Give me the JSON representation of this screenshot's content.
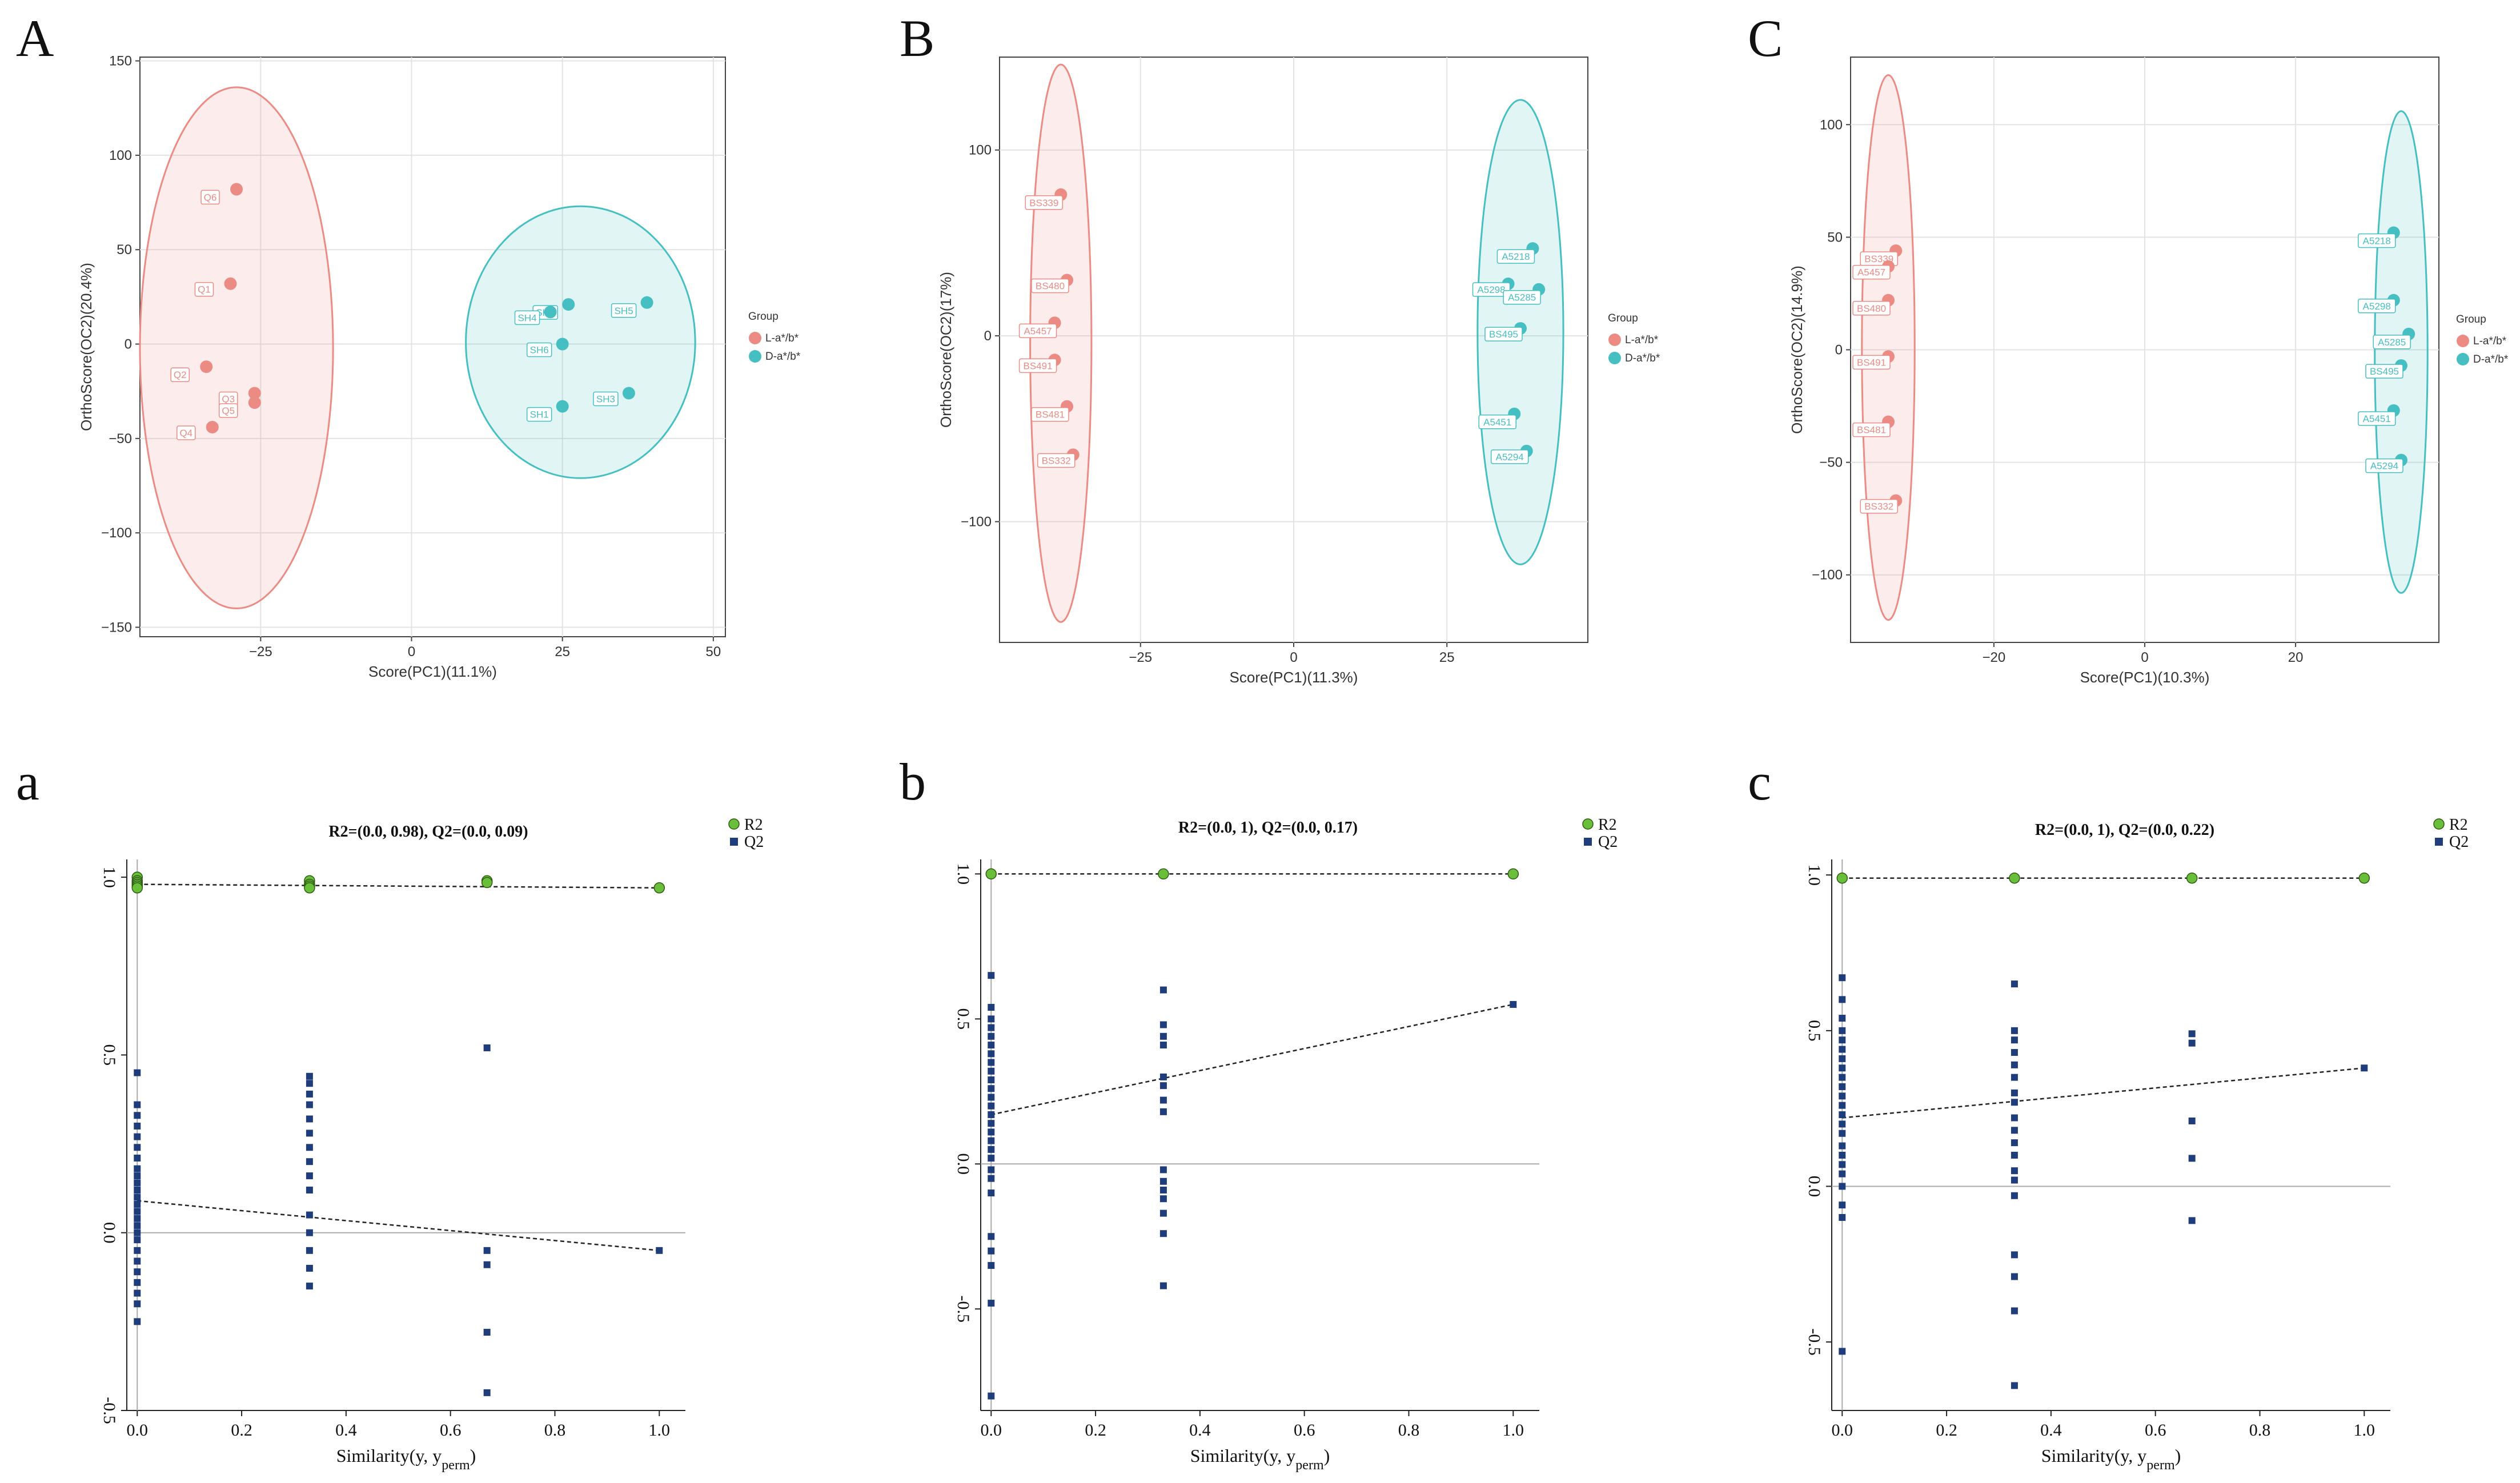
{
  "chart_data": [
    {
      "panel": "A",
      "type": "scatter",
      "xlabel": "Score(PC1)(11.1%)",
      "ylabel": "OrthoScore(OC2)(20.4%)",
      "xlim": [
        -45,
        52
      ],
      "ylim": [
        -155,
        152
      ],
      "xticks": [
        -25,
        0,
        25,
        50
      ],
      "yticks": [
        -150,
        -100,
        -50,
        0,
        50,
        100,
        150
      ],
      "legend_title": "Group",
      "series": [
        {
          "name": "L-a*/b*",
          "color": "#ec8b84",
          "ellipse": {
            "cx": -29,
            "cy": -2,
            "rx": 16,
            "ry": 138
          },
          "points": [
            {
              "label": "Q6",
              "x": -29,
              "y": 82
            },
            {
              "label": "Q1",
              "x": -30,
              "y": 32
            },
            {
              "label": "Q2",
              "x": -34,
              "y": -12
            },
            {
              "label": "Q3",
              "x": -26,
              "y": -26
            },
            {
              "label": "Q5",
              "x": -26,
              "y": -31
            },
            {
              "label": "Q4",
              "x": -33,
              "y": -44
            }
          ]
        },
        {
          "name": "D-a*/b*",
          "color": "#46bfc3",
          "ellipse": {
            "cx": 28,
            "cy": 1,
            "rx": 19,
            "ry": 72
          },
          "points": [
            {
              "label": "SH2",
              "x": 26,
              "y": 21
            },
            {
              "label": "SH4",
              "x": 23,
              "y": 17
            },
            {
              "label": "SH5",
              "x": 39,
              "y": 22
            },
            {
              "label": "SH6",
              "x": 25,
              "y": 0
            },
            {
              "label": "SH1",
              "x": 25,
              "y": -33
            },
            {
              "label": "SH3",
              "x": 36,
              "y": -26
            }
          ]
        }
      ]
    },
    {
      "panel": "B",
      "type": "scatter",
      "xlabel": "Score(PC1)(11.3%)",
      "ylabel": "OrthoScore(OC2)(17%)",
      "xlim": [
        -48,
        48
      ],
      "ylim": [
        -165,
        150
      ],
      "xticks": [
        -25,
        0,
        25
      ],
      "yticks": [
        -100,
        0,
        100
      ],
      "legend_title": "Group",
      "series": [
        {
          "name": "L-a*/b*",
          "color": "#ec8b84",
          "ellipse": {
            "cx": -38,
            "cy": -4,
            "rx": 5,
            "ry": 150
          },
          "points": [
            {
              "label": "BS339",
              "x": -38,
              "y": 76
            },
            {
              "label": "BS480",
              "x": -37,
              "y": 30
            },
            {
              "label": "A5457",
              "x": -39,
              "y": 7
            },
            {
              "label": "BS491",
              "x": -39,
              "y": -13
            },
            {
              "label": "BS481",
              "x": -37,
              "y": -38
            },
            {
              "label": "BS332",
              "x": -36,
              "y": -64
            }
          ]
        },
        {
          "name": "D-a*/b*",
          "color": "#46bfc3",
          "ellipse": {
            "cx": 37,
            "cy": 2,
            "rx": 7,
            "ry": 125
          },
          "points": [
            {
              "label": "A5218",
              "x": 39,
              "y": 47
            },
            {
              "label": "A5298",
              "x": 35,
              "y": 28
            },
            {
              "label": "A5285",
              "x": 40,
              "y": 25
            },
            {
              "label": "BS495",
              "x": 37,
              "y": 4
            },
            {
              "label": "A5451",
              "x": 36,
              "y": -42
            },
            {
              "label": "A5294",
              "x": 38,
              "y": -62
            }
          ]
        }
      ]
    },
    {
      "panel": "C",
      "type": "scatter",
      "xlabel": "Score(PC1)(10.3%)",
      "ylabel": "OrthoScore(OC2)(14.9%)",
      "xlim": [
        -39,
        39
      ],
      "ylim": [
        -130,
        130
      ],
      "xticks": [
        -20,
        0,
        20
      ],
      "yticks": [
        -100,
        -50,
        0,
        50,
        100
      ],
      "legend_title": "Group",
      "series": [
        {
          "name": "L-a*/b*",
          "color": "#ec8b84",
          "ellipse": {
            "cx": -34,
            "cy": 1,
            "rx": 3.5,
            "ry": 121
          },
          "points": [
            {
              "label": "BS339",
              "x": -33,
              "y": 44
            },
            {
              "label": "A5457",
              "x": -34,
              "y": 37
            },
            {
              "label": "BS480",
              "x": -34,
              "y": 22
            },
            {
              "label": "BS491",
              "x": -34,
              "y": -3
            },
            {
              "label": "BS481",
              "x": -34,
              "y": -32
            },
            {
              "label": "BS332",
              "x": -33,
              "y": -67
            }
          ]
        },
        {
          "name": "D-a*/b*",
          "color": "#46bfc3",
          "ellipse": {
            "cx": 34,
            "cy": -1,
            "rx": 3.5,
            "ry": 107
          },
          "points": [
            {
              "label": "A5218",
              "x": 33,
              "y": 52
            },
            {
              "label": "A5298",
              "x": 33,
              "y": 22
            },
            {
              "label": "A5285",
              "x": 35,
              "y": 7
            },
            {
              "label": "BS495",
              "x": 34,
              "y": -7
            },
            {
              "label": "A5451",
              "x": 33,
              "y": -27
            },
            {
              "label": "A5294",
              "x": 34,
              "y": -49
            }
          ]
        }
      ]
    },
    {
      "panel": "a",
      "type": "scatter",
      "title": "R2=(0.0, 0.98), Q2=(0.0, 0.09)",
      "xlabel": "Similarity(y, y",
      "xlabel_sub": "perm",
      "xlabel_end": ")",
      "xlim": [
        -0.02,
        1.05
      ],
      "ylim": [
        -0.5,
        1.05
      ],
      "xticks": [
        "0.0",
        "0.2",
        "0.4",
        "0.6",
        "0.8",
        "1.0"
      ],
      "yticks": [
        "-0.5",
        "0.0",
        "0.5",
        "1.0"
      ],
      "legend": [
        {
          "name": "R2",
          "color": "#6abf3a"
        },
        {
          "name": "Q2",
          "color": "#1f3d7a"
        }
      ],
      "r2_line": [
        0.98,
        0.97
      ],
      "q2_line": [
        0.09,
        -0.05
      ],
      "r2_points": [
        [
          0,
          1.0
        ],
        [
          0,
          0.99
        ],
        [
          0,
          0.985
        ],
        [
          0,
          0.98
        ],
        [
          0,
          0.975
        ],
        [
          0,
          0.97
        ],
        [
          0.33,
          0.99
        ],
        [
          0.33,
          0.98
        ],
        [
          0.33,
          0.975
        ],
        [
          0.33,
          0.97
        ],
        [
          0.67,
          0.99
        ],
        [
          0.67,
          0.985
        ],
        [
          1.0,
          0.97
        ]
      ],
      "q2_points": [
        [
          0,
          0.45
        ],
        [
          0,
          0.36
        ],
        [
          0,
          0.33
        ],
        [
          0,
          0.3
        ],
        [
          0,
          0.27
        ],
        [
          0,
          0.24
        ],
        [
          0,
          0.21
        ],
        [
          0,
          0.18
        ],
        [
          0,
          0.16
        ],
        [
          0,
          0.14
        ],
        [
          0,
          0.12
        ],
        [
          0,
          0.1
        ],
        [
          0,
          0.08
        ],
        [
          0,
          0.06
        ],
        [
          0,
          0.04
        ],
        [
          0,
          0.02
        ],
        [
          0,
          0.0
        ],
        [
          0,
          -0.02
        ],
        [
          0,
          -0.05
        ],
        [
          0,
          -0.08
        ],
        [
          0,
          -0.11
        ],
        [
          0,
          -0.14
        ],
        [
          0,
          -0.17
        ],
        [
          0,
          -0.2
        ],
        [
          0,
          -0.25
        ],
        [
          0.33,
          0.44
        ],
        [
          0.33,
          0.42
        ],
        [
          0.33,
          0.39
        ],
        [
          0.33,
          0.36
        ],
        [
          0.33,
          0.32
        ],
        [
          0.33,
          0.28
        ],
        [
          0.33,
          0.24
        ],
        [
          0.33,
          0.2
        ],
        [
          0.33,
          0.16
        ],
        [
          0.33,
          0.12
        ],
        [
          0.33,
          0.05
        ],
        [
          0.33,
          0.0
        ],
        [
          0.33,
          -0.05
        ],
        [
          0.33,
          -0.1
        ],
        [
          0.33,
          -0.15
        ],
        [
          0.67,
          0.52
        ],
        [
          0.67,
          -0.05
        ],
        [
          0.67,
          -0.09
        ],
        [
          0.67,
          -0.28
        ],
        [
          0.67,
          -0.45
        ],
        [
          1.0,
          -0.05
        ]
      ]
    },
    {
      "panel": "b",
      "type": "scatter",
      "title": "R2=(0.0, 1), Q2=(0.0, 0.17)",
      "xlabel": "Similarity(y, y",
      "xlabel_sub": "perm",
      "xlabel_end": ")",
      "xlim": [
        -0.02,
        1.05
      ],
      "ylim": [
        -0.85,
        1.05
      ],
      "xticks": [
        "0.0",
        "0.2",
        "0.4",
        "0.6",
        "0.8",
        "1.0"
      ],
      "yticks": [
        "-0.5",
        "0.0",
        "0.5",
        "1.0"
      ],
      "legend": [
        {
          "name": "R2",
          "color": "#6abf3a"
        },
        {
          "name": "Q2",
          "color": "#1f3d7a"
        }
      ],
      "r2_line": [
        1.0,
        1.0
      ],
      "q2_line": [
        0.17,
        0.55
      ],
      "r2_points": [
        [
          0,
          1.0
        ],
        [
          0.33,
          1.0
        ],
        [
          1.0,
          1.0
        ]
      ],
      "q2_points": [
        [
          0,
          0.65
        ],
        [
          0,
          0.54
        ],
        [
          0,
          0.5
        ],
        [
          0,
          0.47
        ],
        [
          0,
          0.44
        ],
        [
          0,
          0.41
        ],
        [
          0,
          0.38
        ],
        [
          0,
          0.35
        ],
        [
          0,
          0.32
        ],
        [
          0,
          0.29
        ],
        [
          0,
          0.26
        ],
        [
          0,
          0.23
        ],
        [
          0,
          0.2
        ],
        [
          0,
          0.17
        ],
        [
          0,
          0.14
        ],
        [
          0,
          0.11
        ],
        [
          0,
          0.08
        ],
        [
          0,
          0.05
        ],
        [
          0,
          0.02
        ],
        [
          0,
          -0.02
        ],
        [
          0,
          -0.05
        ],
        [
          0,
          -0.1
        ],
        [
          0,
          -0.25
        ],
        [
          0,
          -0.3
        ],
        [
          0,
          -0.35
        ],
        [
          0,
          -0.48
        ],
        [
          0,
          -0.8
        ],
        [
          0.33,
          0.6
        ],
        [
          0.33,
          0.48
        ],
        [
          0.33,
          0.44
        ],
        [
          0.33,
          0.41
        ],
        [
          0.33,
          0.3
        ],
        [
          0.33,
          0.27
        ],
        [
          0.33,
          0.22
        ],
        [
          0.33,
          0.18
        ],
        [
          0.33,
          -0.02
        ],
        [
          0.33,
          -0.06
        ],
        [
          0.33,
          -0.09
        ],
        [
          0.33,
          -0.12
        ],
        [
          0.33,
          -0.17
        ],
        [
          0.33,
          -0.24
        ],
        [
          0.33,
          -0.42
        ],
        [
          1.0,
          0.55
        ]
      ]
    },
    {
      "panel": "c",
      "type": "scatter",
      "title": "R2=(0.0, 1), Q2=(0.0, 0.22)",
      "xlabel": "Similarity(y, y",
      "xlabel_sub": "perm",
      "xlabel_end": ")",
      "xlim": [
        -0.02,
        1.05
      ],
      "ylim": [
        -0.72,
        1.05
      ],
      "xticks": [
        "0.0",
        "0.2",
        "0.4",
        "0.6",
        "0.8",
        "1.0"
      ],
      "yticks": [
        "-0.5",
        "0.0",
        "0.5",
        "1.0"
      ],
      "legend": [
        {
          "name": "R2",
          "color": "#6abf3a"
        },
        {
          "name": "Q2",
          "color": "#1f3d7a"
        }
      ],
      "r2_line": [
        0.99,
        0.99
      ],
      "q2_line": [
        0.22,
        0.38
      ],
      "r2_points": [
        [
          0,
          0.99
        ],
        [
          0.33,
          0.99
        ],
        [
          0.67,
          0.99
        ],
        [
          1.0,
          0.99
        ]
      ],
      "q2_points": [
        [
          0,
          0.67
        ],
        [
          0,
          0.6
        ],
        [
          0,
          0.54
        ],
        [
          0,
          0.5
        ],
        [
          0,
          0.47
        ],
        [
          0,
          0.44
        ],
        [
          0,
          0.41
        ],
        [
          0,
          0.38
        ],
        [
          0,
          0.35
        ],
        [
          0,
          0.32
        ],
        [
          0,
          0.29
        ],
        [
          0,
          0.26
        ],
        [
          0,
          0.23
        ],
        [
          0,
          0.2
        ],
        [
          0,
          0.17
        ],
        [
          0,
          0.13
        ],
        [
          0,
          0.1
        ],
        [
          0,
          0.07
        ],
        [
          0,
          0.04
        ],
        [
          0,
          0.0
        ],
        [
          0,
          -0.06
        ],
        [
          0,
          -0.1
        ],
        [
          0,
          -0.53
        ],
        [
          0.33,
          0.65
        ],
        [
          0.33,
          0.5
        ],
        [
          0.33,
          0.47
        ],
        [
          0.33,
          0.43
        ],
        [
          0.33,
          0.39
        ],
        [
          0.33,
          0.35
        ],
        [
          0.33,
          0.3
        ],
        [
          0.33,
          0.27
        ],
        [
          0.33,
          0.22
        ],
        [
          0.33,
          0.18
        ],
        [
          0.33,
          0.14
        ],
        [
          0.33,
          0.1
        ],
        [
          0.33,
          0.05
        ],
        [
          0.33,
          0.02
        ],
        [
          0.33,
          -0.03
        ],
        [
          0.33,
          -0.22
        ],
        [
          0.33,
          -0.29
        ],
        [
          0.33,
          -0.4
        ],
        [
          0.33,
          -0.64
        ],
        [
          0.67,
          0.49
        ],
        [
          0.67,
          0.46
        ],
        [
          0.67,
          0.21
        ],
        [
          0.67,
          0.09
        ],
        [
          0.67,
          -0.11
        ],
        [
          1.0,
          0.38
        ]
      ]
    }
  ]
}
